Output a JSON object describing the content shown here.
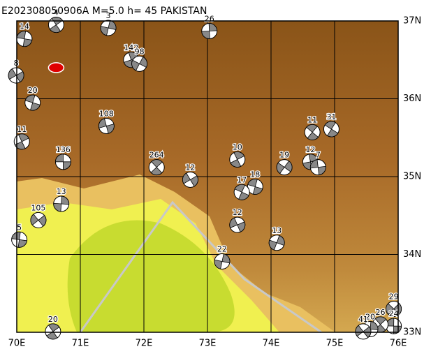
{
  "map": {
    "title": "E202308050906A M=5.0 h= 45 PAKISTAN",
    "xlim": [
      70,
      76
    ],
    "ylim": [
      33,
      37
    ],
    "xticks": [
      {
        "value": 70,
        "label": "70E"
      },
      {
        "value": 71,
        "label": "71E"
      },
      {
        "value": 72,
        "label": "72E"
      },
      {
        "value": 73,
        "label": "73E"
      },
      {
        "value": 74,
        "label": "74E"
      },
      {
        "value": 75,
        "label": "75E"
      },
      {
        "value": 76,
        "label": "76E"
      }
    ],
    "yticks": [
      {
        "value": 33,
        "label": "33N"
      },
      {
        "value": 34,
        "label": "34N"
      },
      {
        "value": 35,
        "label": "35N"
      },
      {
        "value": 36,
        "label": "36N"
      },
      {
        "value": 37,
        "label": "37N"
      }
    ],
    "epicenter": {
      "lon": 70.62,
      "lat": 36.4
    },
    "events": [
      {
        "lon": 70.73,
        "lat": 35.19,
        "label": "136"
      },
      {
        "lon": 72.2,
        "lat": 35.12,
        "label": "264"
      },
      {
        "lon": 70.7,
        "lat": 34.65,
        "label": "13"
      },
      {
        "lon": 70.34,
        "lat": 34.44,
        "label": "105"
      },
      {
        "lon": 70.04,
        "lat": 34.19,
        "label": "5"
      },
      {
        "lon": 70.57,
        "lat": 33.01,
        "label": "20"
      },
      {
        "lon": 73.23,
        "lat": 33.91,
        "label": "22"
      },
      {
        "lon": 72.73,
        "lat": 34.96,
        "label": "12"
      },
      {
        "lon": 73.75,
        "lat": 34.87,
        "label": "18"
      },
      {
        "lon": 73.47,
        "lat": 35.22,
        "label": "10"
      },
      {
        "lon": 74.09,
        "lat": 34.15,
        "label": "13"
      },
      {
        "lon": 73.47,
        "lat": 34.38,
        "label": "12"
      },
      {
        "lon": 73.54,
        "lat": 34.8,
        "label": "17"
      },
      {
        "lon": 71.8,
        "lat": 36.5,
        "label": "142"
      },
      {
        "lon": 71.93,
        "lat": 36.45,
        "label": "98"
      },
      {
        "lon": 71.41,
        "lat": 35.65,
        "label": "108"
      },
      {
        "lon": 74.95,
        "lat": 35.61,
        "label": "31"
      },
      {
        "lon": 74.62,
        "lat": 35.19,
        "label": "12"
      },
      {
        "lon": 74.21,
        "lat": 35.12,
        "label": "19"
      },
      {
        "lon": 74.74,
        "lat": 35.12,
        "label": "7"
      },
      {
        "lon": 74.65,
        "lat": 35.57,
        "label": "11"
      },
      {
        "lon": 73.03,
        "lat": 36.87,
        "label": "26"
      },
      {
        "lon": 75.93,
        "lat": 33.3,
        "label": "29"
      },
      {
        "lon": 75.93,
        "lat": 33.08,
        "label": "24"
      },
      {
        "lon": 75.72,
        "lat": 33.1,
        "label": "26"
      },
      {
        "lon": 75.56,
        "lat": 33.04,
        "label": "20"
      },
      {
        "lon": 75.45,
        "lat": 33.01,
        "label": "41"
      },
      {
        "lon": 70.12,
        "lat": 36.77,
        "label": "14"
      },
      {
        "lon": 70.62,
        "lat": 36.95,
        "label": "4"
      },
      {
        "lon": 71.44,
        "lat": 36.91,
        "label": "3"
      },
      {
        "lon": 69.99,
        "lat": 36.3,
        "label": "8"
      },
      {
        "lon": 70.25,
        "lat": 35.95,
        "label": "20"
      },
      {
        "lon": 70.08,
        "lat": 35.45,
        "label": "11"
      }
    ]
  }
}
